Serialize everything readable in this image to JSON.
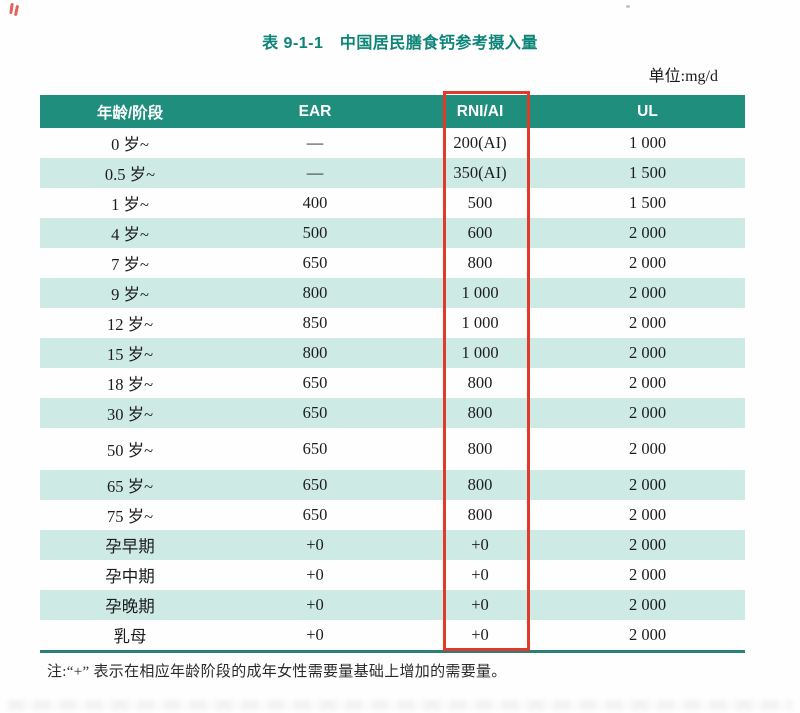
{
  "page": {
    "title": "表 9-1-1　中国居民膳食钙参考摄入量",
    "unit_label": "单位:mg/d",
    "note": "注:“+” 表示在相应年龄阶段的成年女性需要量基础上增加的需要量。"
  },
  "table": {
    "columns": [
      "年龄/阶段",
      "EAR",
      "RNI/AI",
      "UL"
    ],
    "highlighted_column": "RNI/AI",
    "rows": [
      [
        "0 岁~",
        "—",
        "200(AI)",
        "1 000"
      ],
      [
        "0.5 岁~",
        "—",
        "350(AI)",
        "1 500"
      ],
      [
        "1 岁~",
        "400",
        "500",
        "1 500"
      ],
      [
        "4 岁~",
        "500",
        "600",
        "2 000"
      ],
      [
        "7 岁~",
        "650",
        "800",
        "2 000"
      ],
      [
        "9 岁~",
        "800",
        "1 000",
        "2 000"
      ],
      [
        "12 岁~",
        "850",
        "1 000",
        "2 000"
      ],
      [
        "15 岁~",
        "800",
        "1 000",
        "2 000"
      ],
      [
        "18 岁~",
        "650",
        "800",
        "2 000"
      ],
      [
        "30 岁~",
        "650",
        "800",
        "2 000"
      ],
      [
        "50 岁~",
        "650",
        "800",
        "2 000"
      ],
      [
        "65 岁~",
        "650",
        "800",
        "2 000"
      ],
      [
        "75 岁~",
        "650",
        "800",
        "2 000"
      ],
      [
        "孕早期",
        "+0",
        "+0",
        "2 000"
      ],
      [
        "孕中期",
        "+0",
        "+0",
        "2 000"
      ],
      [
        "孕晚期",
        "+0",
        "+0",
        "2 000"
      ],
      [
        "乳母",
        "+0",
        "+0",
        "2 000"
      ]
    ]
  },
  "colors": {
    "header_bg": "#1f8e7c",
    "row_alt_bg": "#cdeae5",
    "title_color": "#0d8478",
    "highlight_border": "#e13a2b",
    "table_bottom_border": "#2c7f74"
  }
}
